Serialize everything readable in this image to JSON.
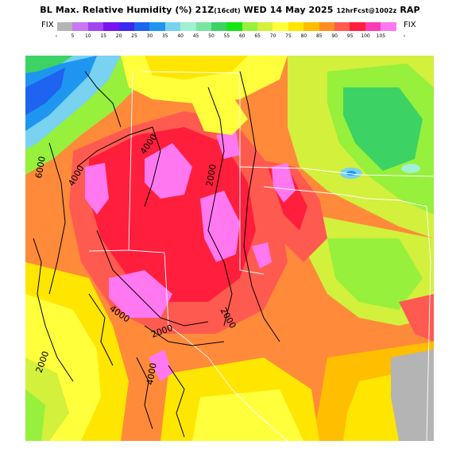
{
  "header": {
    "title_main": "BL Max. Relative Humidity (%) 21Z",
    "title_local": "(16cdt)",
    "title_date": "WED 14 May 2025",
    "title_run": "12hrFcst@1002z",
    "title_model": "RAP"
  },
  "colorbar": {
    "fix_left": "FIX",
    "fix_right": "FIX",
    "arrow_left": "‹",
    "arrow_right": "›",
    "labels": [
      "5",
      "10",
      "15",
      "20",
      "25",
      "30",
      "35",
      "40",
      "45",
      "50",
      "55",
      "60",
      "65",
      "70",
      "75",
      "80",
      "85",
      "90",
      "95",
      "100",
      "105"
    ],
    "colors": [
      "#b4b4b4",
      "#c878f0",
      "#a046f0",
      "#7814f0",
      "#3c28f0",
      "#1e64f0",
      "#1e96f0",
      "#78d2f0",
      "#a0f0d2",
      "#78e6a0",
      "#3cd264",
      "#14e614",
      "#96f03c",
      "#d2f03c",
      "#ffff3c",
      "#ffe600",
      "#ffbe00",
      "#ff8c1e",
      "#ff5a50",
      "#ff1e3c",
      "#ff3cb4",
      "#ff78f0"
    ]
  },
  "map": {
    "contour_labels": [
      "6000",
      "4000",
      "4000",
      "2000",
      "2000",
      "4000",
      "2000",
      "2000",
      "4000"
    ],
    "colors": {
      "base": "#ff8a3a",
      "yellow": "#ffff3c",
      "yellow_orange": "#ffe600",
      "orange": "#ffbe00",
      "red_orange": "#ff5a50",
      "red": "#ff1e3c",
      "magenta": "#ff78f0",
      "light_green": "#96f03c",
      "green": "#3cd264",
      "pale_green": "#d2f03c",
      "cyan": "#78d2f0",
      "blue": "#1e64f0",
      "lightblue": "#1e96f0",
      "gray": "#b4b4b4",
      "teal": "#a0f0d2"
    }
  }
}
